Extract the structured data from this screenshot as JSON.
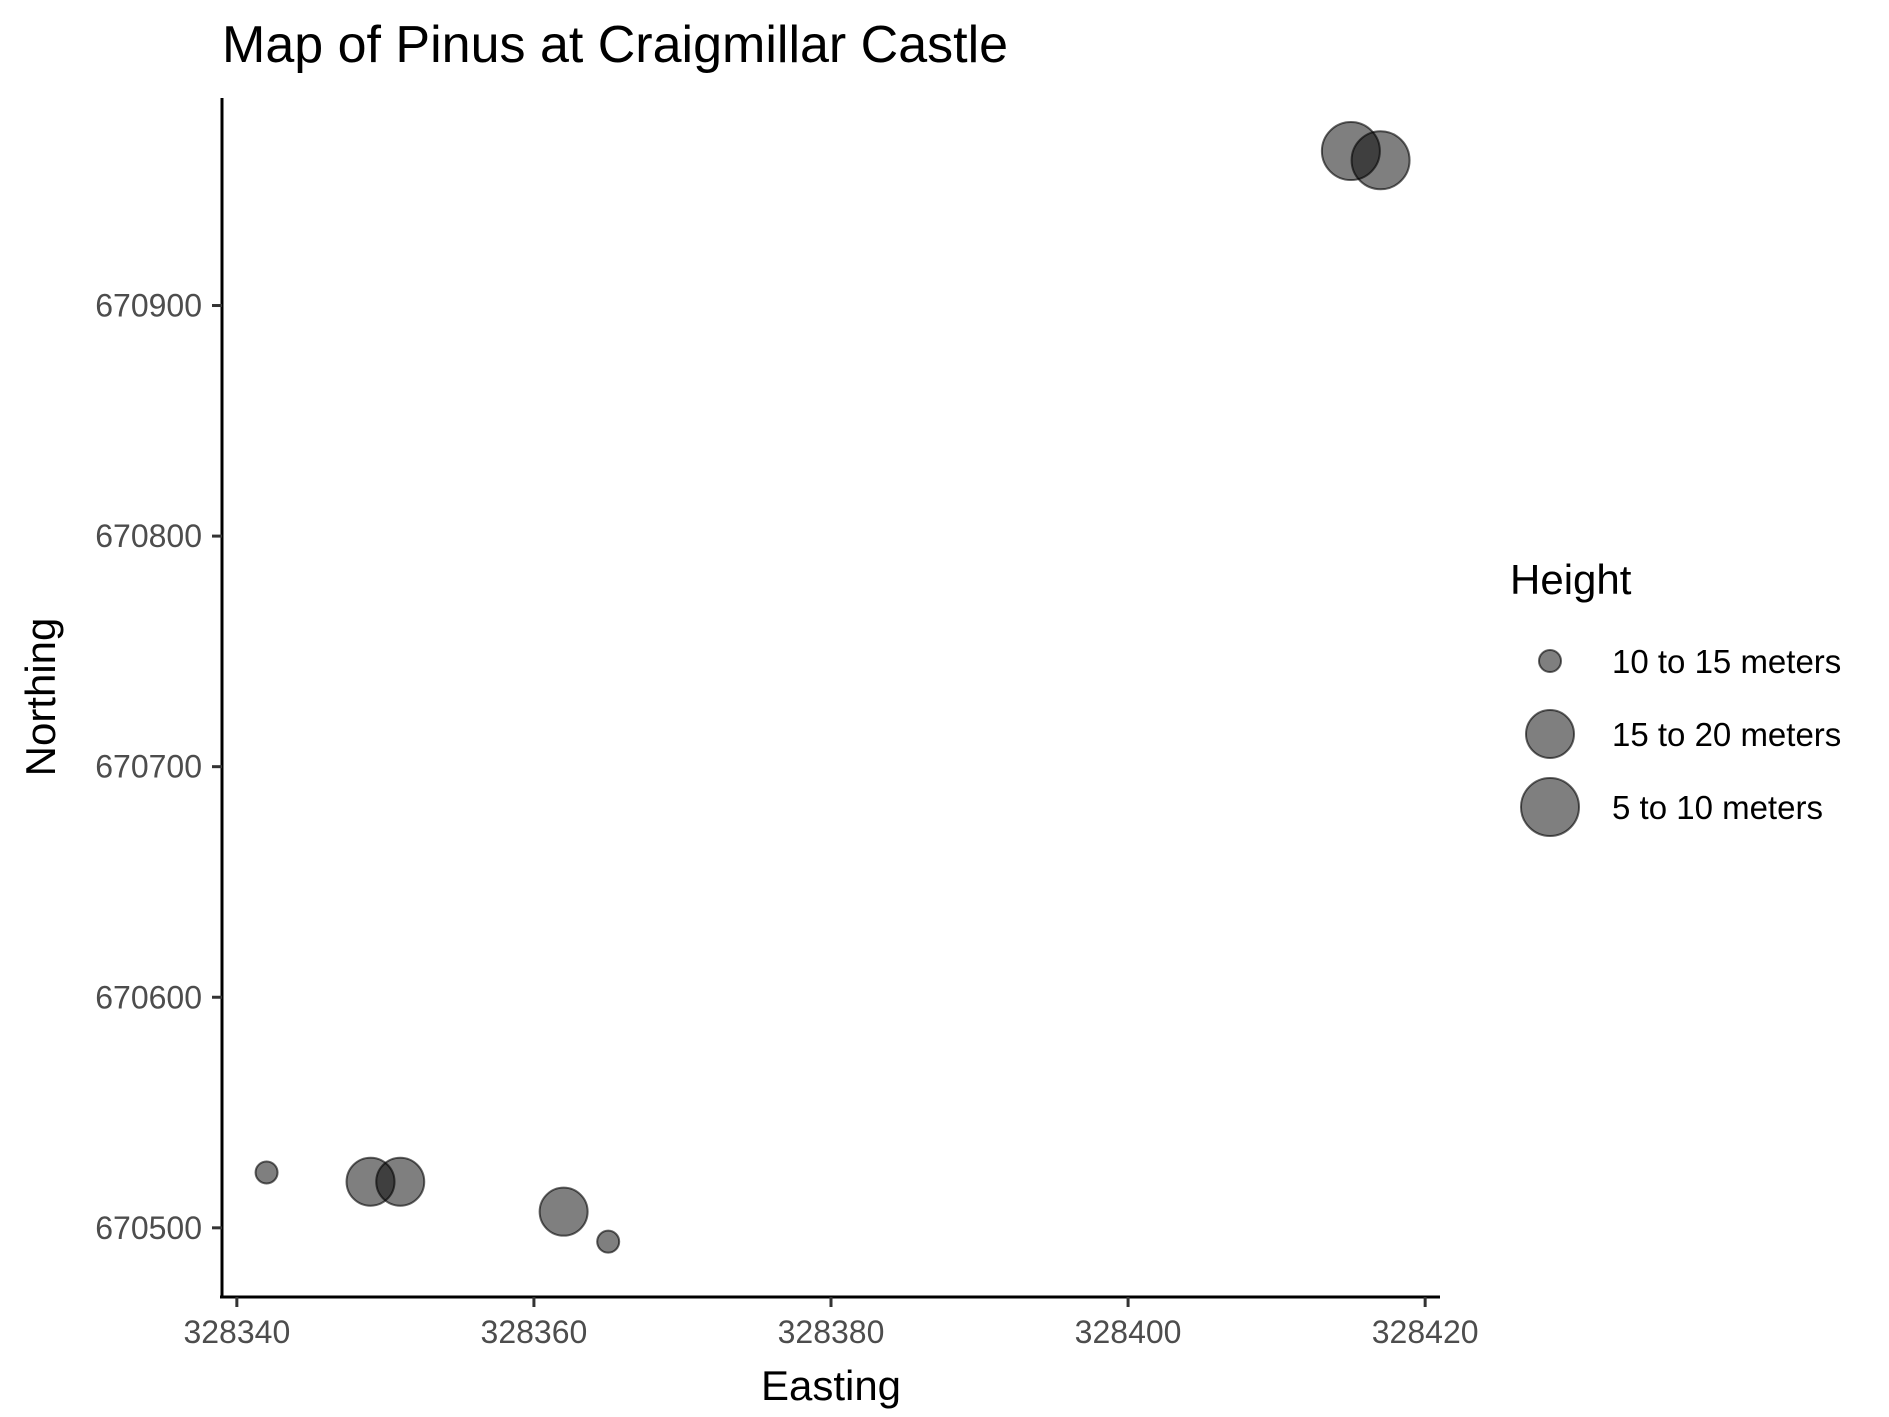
{
  "chart_data": {
    "type": "scatter",
    "title": "Map of Pinus at Craigmillar Castle",
    "xlabel": "Easting",
    "ylabel": "Northing",
    "xlim": [
      328339,
      328421
    ],
    "ylim": [
      670470,
      670990
    ],
    "xticks": [
      328340,
      328360,
      328380,
      328400,
      328420
    ],
    "yticks": [
      670500,
      670600,
      670700,
      670800,
      670900
    ],
    "grid": false,
    "point_color": "#000000",
    "point_alpha": 0.5,
    "legend": {
      "title": "Height",
      "placement": "right",
      "entries": [
        {
          "label": "10 to 15 meters",
          "size_rank": 1
        },
        {
          "label": "15 to 20 meters",
          "size_rank": 2
        },
        {
          "label": "5 to 10 meters",
          "size_rank": 3
        }
      ]
    },
    "points": [
      {
        "x": 328342,
        "y": 670524,
        "height": "10 to 15 meters"
      },
      {
        "x": 328349,
        "y": 670520,
        "height": "15 to 20 meters"
      },
      {
        "x": 328351,
        "y": 670520,
        "height": "15 to 20 meters"
      },
      {
        "x": 328362,
        "y": 670507,
        "height": "15 to 20 meters"
      },
      {
        "x": 328365,
        "y": 670494,
        "height": "10 to 15 meters"
      },
      {
        "x": 328415,
        "y": 670967,
        "height": "5 to 10 meters"
      },
      {
        "x": 328417,
        "y": 670963,
        "height": "5 to 10 meters"
      }
    ]
  }
}
